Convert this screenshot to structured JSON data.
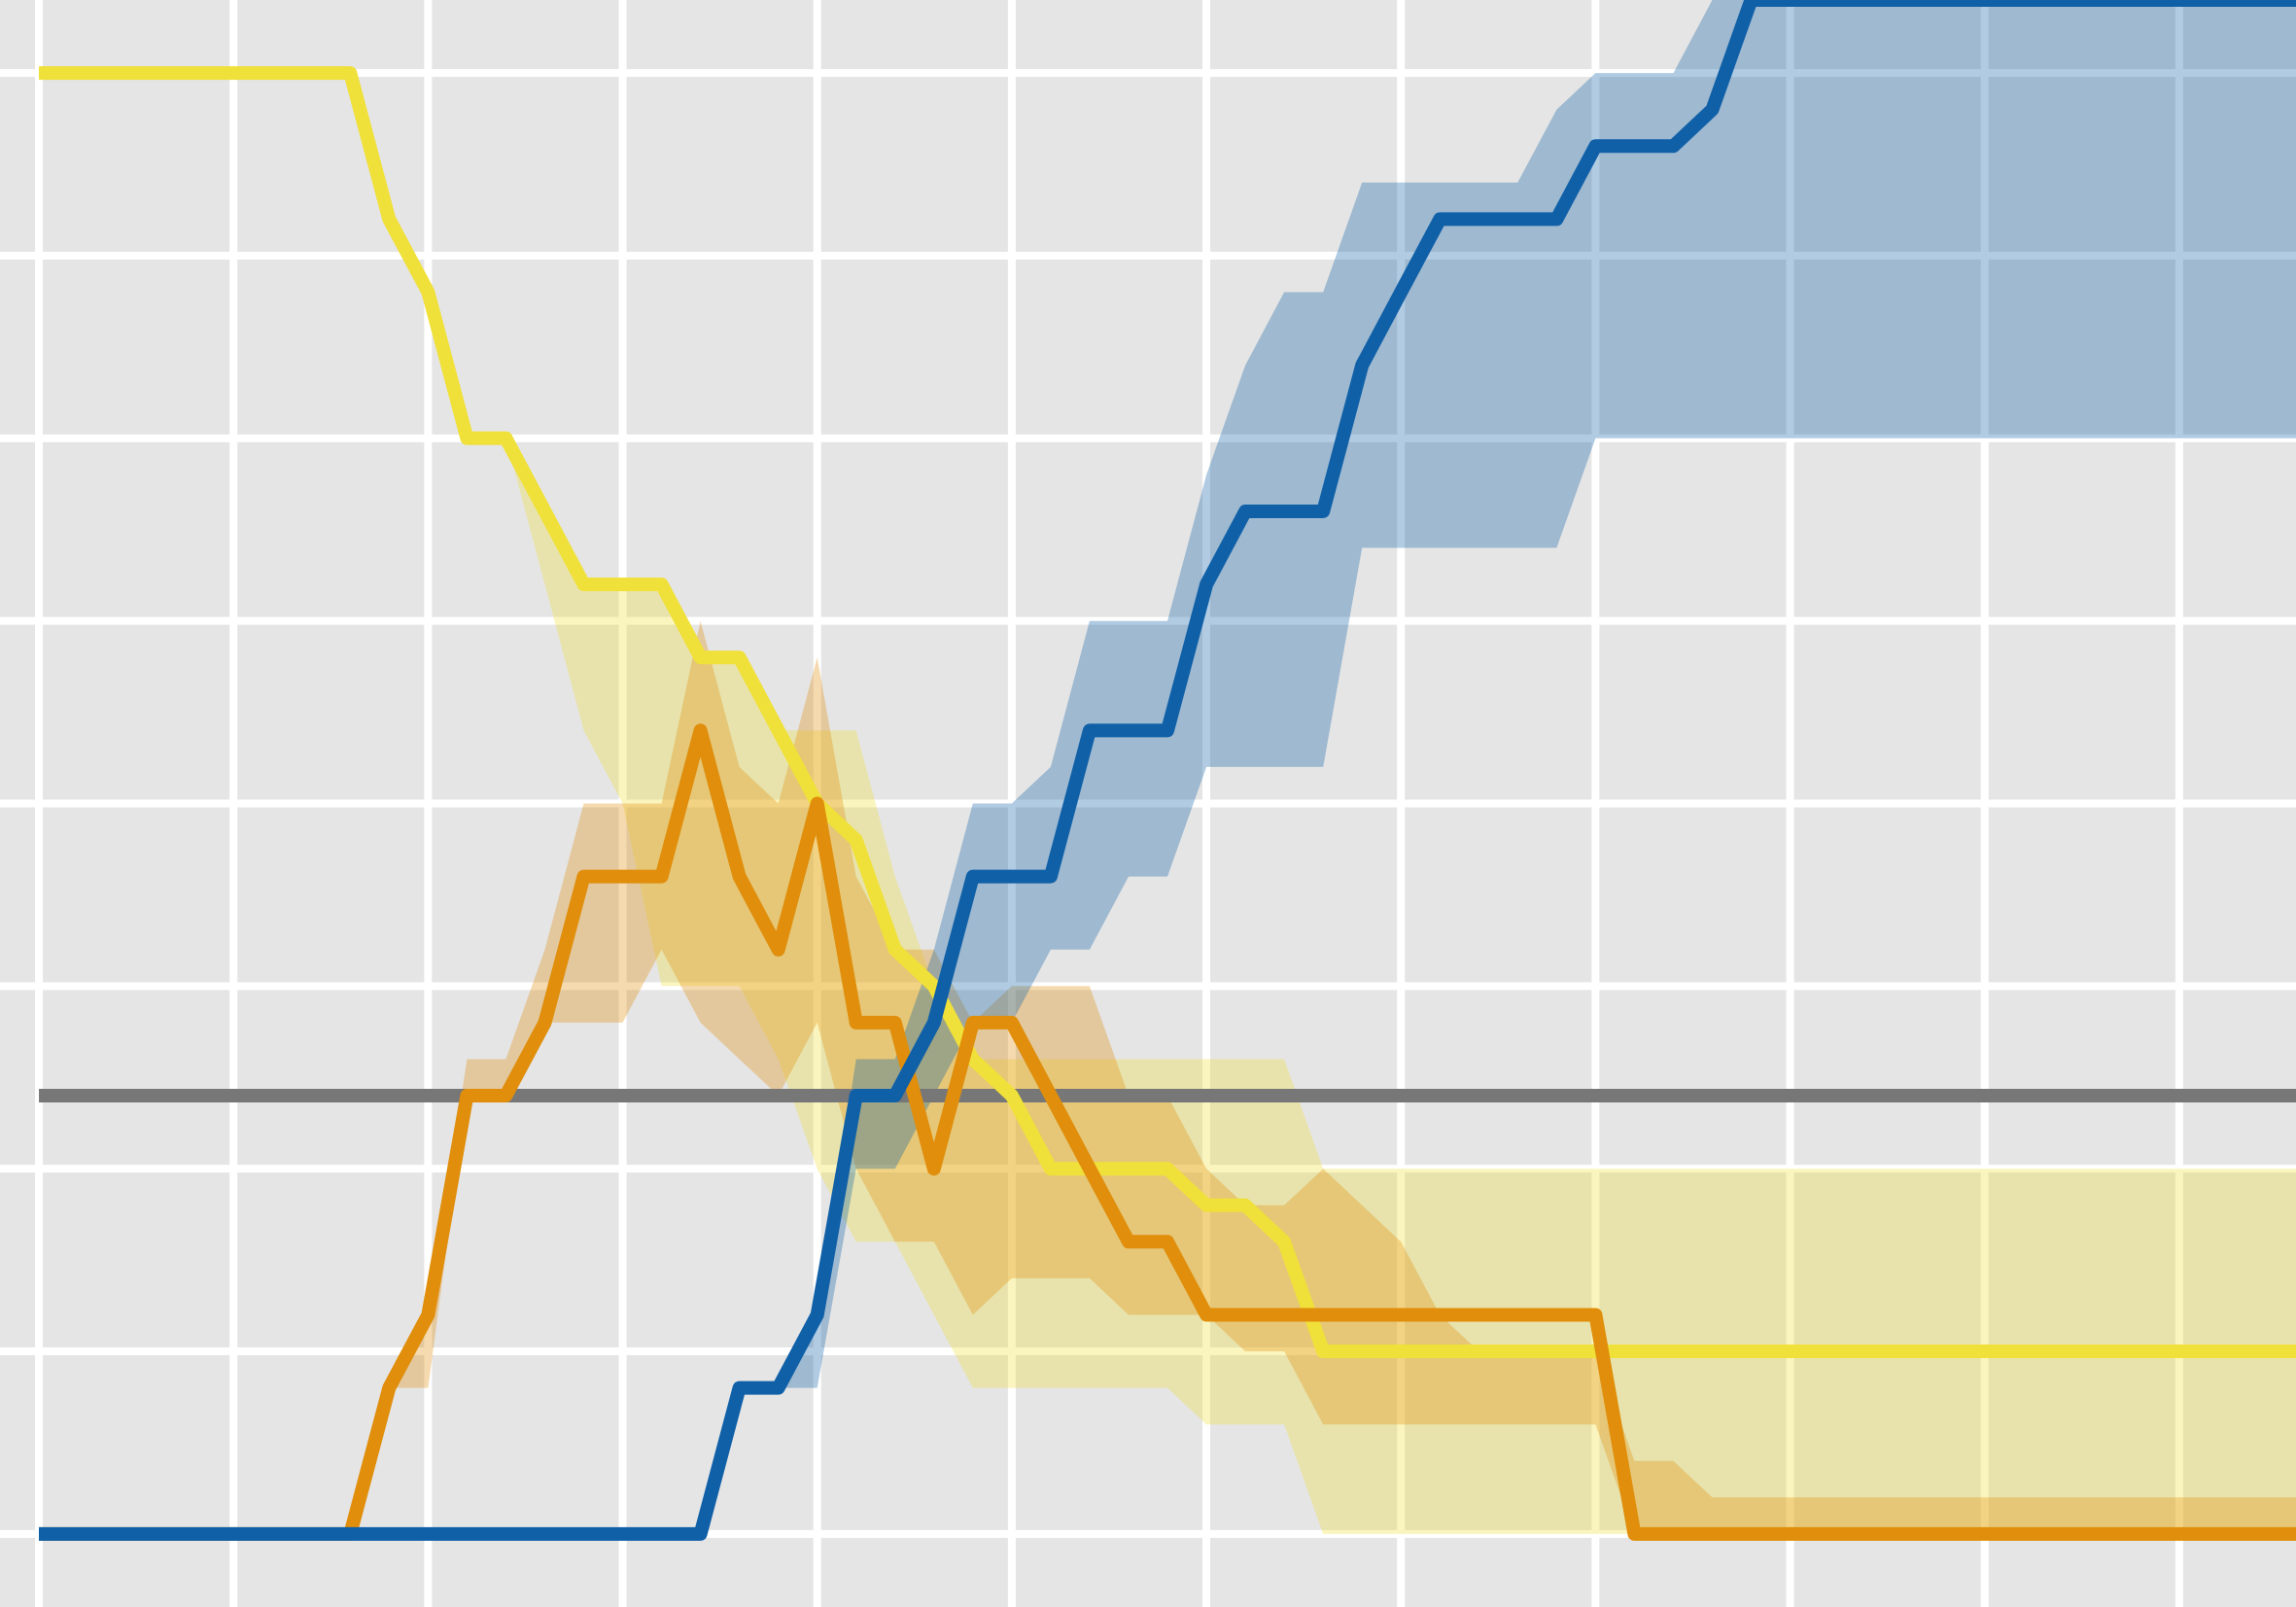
{
  "chart_data": {
    "type": "line",
    "title": "",
    "xlabel": "",
    "ylabel": "",
    "grid": true,
    "legend": "none",
    "xlim": [
      -1,
      58
    ],
    "ylim": [
      -0.2,
      4.2
    ],
    "background": "#e5e5e5",
    "grid_color": "#ffffff",
    "x": [
      0,
      1,
      2,
      3,
      4,
      5,
      6,
      7,
      8,
      9,
      10,
      11,
      12,
      13,
      14,
      15,
      16,
      17,
      18,
      19,
      20,
      21,
      22,
      23,
      24,
      25,
      26,
      27,
      28,
      29,
      30,
      31,
      32,
      33,
      34,
      35,
      36,
      37,
      38,
      39,
      40,
      41,
      42,
      43,
      44,
      45,
      46,
      47,
      48,
      49,
      50,
      51,
      52,
      53,
      54,
      55,
      56,
      57,
      58,
      59
    ],
    "reference_line": {
      "y": 1.2,
      "color": "#777777"
    },
    "series": [
      {
        "color": "#f0e03a",
        "values": [
          4,
          4,
          4,
          4,
          4,
          4,
          4,
          4,
          4,
          3.6,
          3.4,
          3.0,
          3.0,
          2.8,
          2.6,
          2.6,
          2.6,
          2.4,
          2.4,
          2.2,
          2.0,
          1.9,
          1.6,
          1.5,
          1.3,
          1.2,
          1.0,
          1.0,
          1.0,
          1.0,
          0.9,
          0.9,
          0.8,
          0.5,
          0.5,
          0.5,
          0.5,
          0.5,
          0.5,
          0.5,
          0.5,
          0.5,
          0.5,
          0.5,
          0.5,
          0.5,
          0.5,
          0.5,
          0.5,
          0.5,
          0.5,
          0.5,
          0.5,
          0.5,
          0.5,
          0.5,
          0.5,
          0.5,
          0.5,
          0.5
        ],
        "band_low": [
          4,
          4,
          4,
          4,
          4,
          4,
          4,
          4,
          4,
          3.6,
          3.4,
          3.0,
          3.0,
          2.6,
          2.2,
          2.0,
          1.5,
          1.5,
          1.5,
          1.3,
          1.0,
          0.8,
          0.8,
          0.6,
          0.4,
          0.4,
          0.4,
          0.4,
          0.4,
          0.4,
          0.3,
          0.3,
          0.3,
          0.0,
          0.0,
          0.0,
          0.0,
          0.0,
          0.0,
          0.0,
          0.0,
          0.0,
          0.0,
          0.0,
          0.0,
          0.0,
          0.0,
          0.0,
          0.0,
          0.0,
          0.0,
          0.0,
          0.0,
          0.0,
          0.0,
          0.0,
          0.0,
          0.0,
          0.0,
          0.0
        ],
        "band_high": [
          4,
          4,
          4,
          4,
          4,
          4,
          4,
          4,
          4,
          3.6,
          3.4,
          3.0,
          3.0,
          2.8,
          2.6,
          2.6,
          2.6,
          2.4,
          2.4,
          2.2,
          2.2,
          2.2,
          1.8,
          1.5,
          1.3,
          1.3,
          1.3,
          1.3,
          1.3,
          1.3,
          1.3,
          1.3,
          1.3,
          1.0,
          1.0,
          1.0,
          1.0,
          1.0,
          1.0,
          1.0,
          1.0,
          1.0,
          1.0,
          1.0,
          1.0,
          1.0,
          1.0,
          1.0,
          1.0,
          1.0,
          1.0,
          1.0,
          1.0,
          1.0,
          1.0,
          1.0,
          1.0,
          1.0,
          1.0,
          1.0
        ]
      },
      {
        "color": "#e08e0b",
        "values": [
          0,
          0,
          0,
          0,
          0,
          0,
          0,
          0,
          0,
          0.4,
          0.6,
          1.2,
          1.2,
          1.4,
          1.8,
          1.8,
          1.8,
          2.2,
          1.8,
          1.6,
          2.0,
          1.4,
          1.4,
          1.0,
          1.4,
          1.4,
          1.2,
          1.0,
          0.8,
          0.8,
          0.6,
          0.6,
          0.6,
          0.6,
          0.6,
          0.6,
          0.6,
          0.6,
          0.6,
          0.6,
          0.6,
          0.0,
          0.0,
          0.0,
          0.0,
          0.0,
          0.0,
          0.0,
          0.0,
          0.0,
          0.0,
          0.0,
          0.0,
          0.0,
          0.0,
          0.0,
          0.0,
          0.0,
          0.0,
          0.0
        ],
        "band_low": [
          0,
          0,
          0,
          0,
          0,
          0,
          0,
          0,
          0,
          0.4,
          0.4,
          1.2,
          1.2,
          1.4,
          1.4,
          1.4,
          1.6,
          1.4,
          1.3,
          1.2,
          1.4,
          1.0,
          0.8,
          0.8,
          0.6,
          0.7,
          0.7,
          0.7,
          0.6,
          0.6,
          0.6,
          0.5,
          0.5,
          0.3,
          0.3,
          0.3,
          0.3,
          0.3,
          0.3,
          0.3,
          0.3,
          0.0,
          0.0,
          0.0,
          0.0,
          0.0,
          0.0,
          0.0,
          0.0,
          0.0,
          0.0,
          0.0,
          0.0,
          0.0,
          0.0,
          0.0,
          0.0,
          0.0,
          0.0,
          0.0
        ],
        "band_high": [
          0,
          0,
          0,
          0,
          0,
          0,
          0,
          0,
          0,
          0.4,
          0.6,
          1.3,
          1.3,
          1.6,
          2.0,
          2.0,
          2.0,
          2.5,
          2.1,
          2.0,
          2.4,
          1.8,
          1.6,
          1.6,
          1.4,
          1.5,
          1.5,
          1.5,
          1.2,
          1.2,
          1.0,
          0.9,
          0.9,
          1.0,
          0.9,
          0.8,
          0.6,
          0.5,
          0.5,
          0.5,
          0.5,
          0.2,
          0.2,
          0.1,
          0.1,
          0.1,
          0.1,
          0.1,
          0.1,
          0.1,
          0.1,
          0.1,
          0.1,
          0.1,
          0.1,
          0.1,
          0.1,
          0.1,
          0.1,
          0.1
        ]
      },
      {
        "color": "#1060a8",
        "values": [
          0,
          0,
          0,
          0,
          0,
          0,
          0,
          0,
          0,
          0,
          0,
          0,
          0,
          0,
          0,
          0,
          0,
          0,
          0.4,
          0.4,
          0.6,
          1.2,
          1.2,
          1.4,
          1.8,
          1.8,
          1.8,
          2.2,
          2.2,
          2.2,
          2.6,
          2.8,
          2.8,
          2.8,
          3.2,
          3.4,
          3.6,
          3.6,
          3.6,
          3.6,
          3.8,
          3.8,
          3.8,
          3.9,
          4.2,
          4.2,
          4.2,
          4.2,
          4.2,
          4.2,
          4.2,
          4.2,
          4.2,
          4.2,
          4.2,
          4.2,
          4.2,
          4.2,
          4.2,
          4.2
        ],
        "band_low": [
          0,
          0,
          0,
          0,
          0,
          0,
          0,
          0,
          0,
          0,
          0,
          0,
          0,
          0,
          0,
          0,
          0,
          0,
          0.4,
          0.4,
          0.4,
          1.0,
          1.0,
          1.2,
          1.4,
          1.4,
          1.6,
          1.6,
          1.8,
          1.8,
          2.1,
          2.1,
          2.1,
          2.1,
          2.7,
          2.7,
          2.7,
          2.7,
          2.7,
          2.7,
          3.0,
          3.0,
          3.0,
          3.0,
          3.0,
          3.0,
          3.0,
          3.0,
          3.0,
          3.0,
          3.0,
          3.0,
          3.0,
          3.0,
          3.0,
          3.0,
          3.0,
          3.0,
          3.0,
          3.0
        ],
        "band_high": [
          0,
          0,
          0,
          0,
          0,
          0,
          0,
          0,
          0,
          0,
          0,
          0,
          0,
          0,
          0,
          0,
          0,
          0,
          0.4,
          0.4,
          0.6,
          1.3,
          1.3,
          1.6,
          2.0,
          2.0,
          2.1,
          2.5,
          2.5,
          2.5,
          2.9,
          3.2,
          3.4,
          3.4,
          3.7,
          3.7,
          3.7,
          3.7,
          3.7,
          3.9,
          4.0,
          4.0,
          4.0,
          4.2,
          4.4,
          4.4,
          4.4,
          4.4,
          4.4,
          4.4,
          4.4,
          4.4,
          4.4,
          4.4,
          4.4,
          4.4,
          4.4,
          4.4,
          4.4,
          4.4
        ]
      }
    ]
  }
}
